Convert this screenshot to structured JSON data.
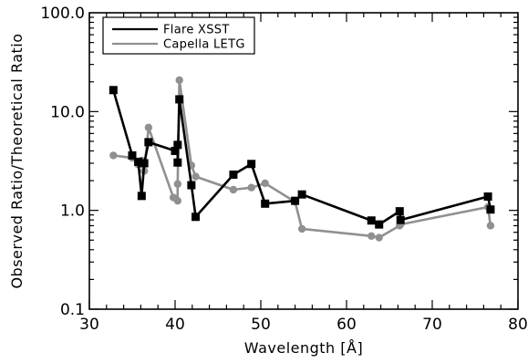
{
  "chart_data": {
    "type": "line",
    "xlabel": "Wavelength [Å]",
    "ylabel": "Observed Ratio/Theoretical Ratio",
    "xlim": [
      30,
      80
    ],
    "ylim": [
      0.1,
      100
    ],
    "yscale": "log",
    "x_ticks": [
      30,
      40,
      50,
      60,
      70,
      80
    ],
    "x_tick_labels": [
      "30",
      "40",
      "50",
      "60",
      "70",
      "80"
    ],
    "y_ticks": [
      0.1,
      1,
      10,
      100
    ],
    "y_tick_labels": [
      "0.1",
      "1.0",
      "10.0",
      "100.0"
    ],
    "grid": false,
    "legend_position": "top-left",
    "series": [
      {
        "name": "Flare XSST",
        "color": "#000000",
        "marker": "square",
        "points": [
          [
            32.8,
            16.5
          ],
          [
            35.0,
            3.6
          ],
          [
            35.7,
            3.1
          ],
          [
            36.1,
            1.4
          ],
          [
            36.4,
            3.0
          ],
          [
            36.9,
            4.9
          ],
          [
            40.0,
            4.0
          ],
          [
            40.3,
            4.6
          ],
          [
            40.3,
            3.05
          ],
          [
            40.5,
            13.3
          ],
          [
            41.9,
            1.8
          ],
          [
            42.4,
            0.86
          ],
          [
            46.8,
            2.3
          ],
          [
            48.9,
            2.95
          ],
          [
            50.5,
            1.17
          ],
          [
            54.0,
            1.25
          ],
          [
            54.8,
            1.45
          ],
          [
            62.9,
            0.79
          ],
          [
            63.8,
            0.72
          ],
          [
            66.2,
            0.98
          ],
          [
            66.3,
            0.8
          ],
          [
            76.5,
            1.38
          ],
          [
            76.8,
            1.02
          ]
        ]
      },
      {
        "name": "Capella LETG",
        "color": "#909090",
        "marker": "circle",
        "points": [
          [
            32.8,
            3.6
          ],
          [
            35.0,
            3.4
          ],
          [
            35.7,
            2.9
          ],
          [
            36.1,
            3.2
          ],
          [
            36.4,
            2.5
          ],
          [
            36.9,
            6.9
          ],
          [
            39.8,
            1.35
          ],
          [
            40.3,
            1.25
          ],
          [
            40.3,
            1.85
          ],
          [
            40.5,
            20.8
          ],
          [
            41.9,
            2.85
          ],
          [
            42.4,
            2.2
          ],
          [
            46.8,
            1.62
          ],
          [
            48.9,
            1.7
          ],
          [
            50.5,
            1.88
          ],
          [
            54.0,
            1.22
          ],
          [
            54.8,
            0.65
          ],
          [
            62.9,
            0.55
          ],
          [
            63.8,
            0.53
          ],
          [
            66.2,
            0.7
          ],
          [
            66.3,
            0.72
          ],
          [
            76.5,
            1.08
          ],
          [
            76.8,
            0.7
          ]
        ]
      }
    ]
  }
}
